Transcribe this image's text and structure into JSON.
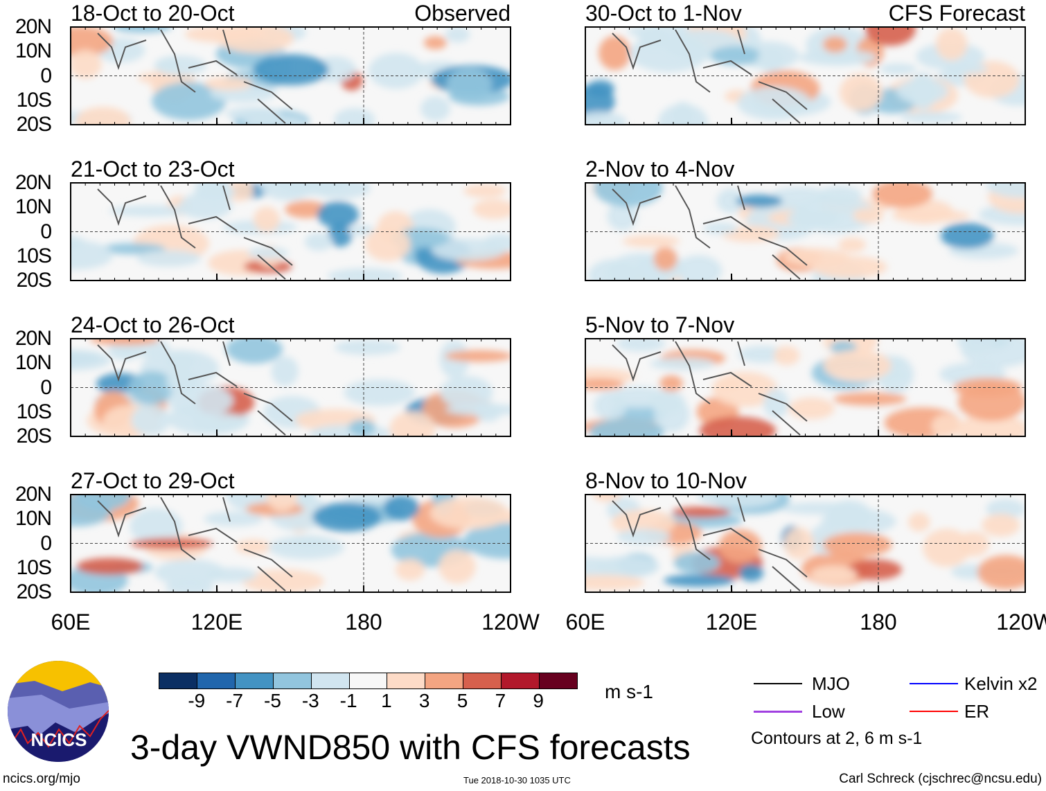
{
  "panels": {
    "left": [
      {
        "title": "18-Oct to 20-Oct",
        "tag": "Observed"
      },
      {
        "title": "21-Oct to 23-Oct",
        "tag": ""
      },
      {
        "title": "24-Oct to 26-Oct",
        "tag": ""
      },
      {
        "title": "27-Oct to 29-Oct",
        "tag": ""
      }
    ],
    "right": [
      {
        "title": "30-Oct to 1-Nov",
        "tag": "CFS Forecast"
      },
      {
        "title": "2-Nov to 4-Nov",
        "tag": ""
      },
      {
        "title": "5-Nov to 7-Nov",
        "tag": ""
      },
      {
        "title": "8-Nov to 10-Nov",
        "tag": ""
      }
    ]
  },
  "lat_ticks": [
    "20N",
    "10N",
    "0",
    "10S",
    "20S"
  ],
  "lon_ticks": [
    "60E",
    "120E",
    "180",
    "120W"
  ],
  "colorbar": {
    "labels": [
      "-9",
      "-7",
      "-5",
      "-3",
      "-1",
      "1",
      "3",
      "5",
      "7",
      "9"
    ],
    "colors": [
      "#0b2f63",
      "#2166ac",
      "#4393c3",
      "#92c5de",
      "#d1e5f0",
      "#f7f7f7",
      "#fddbc7",
      "#f4a582",
      "#d6604d",
      "#b2182b",
      "#67001f"
    ],
    "units": "m s-1"
  },
  "legend": {
    "items": [
      {
        "label": "MJO",
        "color": "#000000"
      },
      {
        "label": "Kelvin x2",
        "color": "#0000ff"
      },
      {
        "label": "Low",
        "color": "#a040e0"
      },
      {
        "label": "ER",
        "color": "#ff0000"
      }
    ],
    "contours": "Contours at 2, 6 m s-1"
  },
  "logo_text": "NCICS",
  "title": "3-day VWND850 with CFS forecasts",
  "footer": {
    "url": "ncics.org/mjo",
    "timestamp": "Tue 2018-10-30 1035 UTC",
    "credit": "Carl Schreck (cjschrec@ncsu.edu)"
  }
}
